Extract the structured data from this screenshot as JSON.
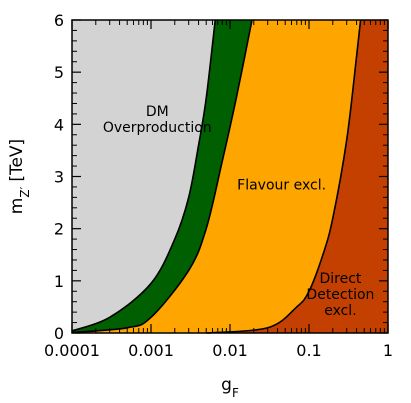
{
  "chart_data": {
    "type": "area",
    "title": "",
    "xlabel": "g",
    "xlabel_sub": "F",
    "ylabel": "m",
    "ylabel_sub": "Z′",
    "ylabel_unit": "[TeV]",
    "x_scale": "log",
    "xlim": [
      0.0001,
      1
    ],
    "ylim": [
      0,
      6
    ],
    "x_ticks": [
      {
        "value": 0.0001,
        "label": "0.0001"
      },
      {
        "value": 0.001,
        "label": "0.001"
      },
      {
        "value": 0.01,
        "label": "0.01"
      },
      {
        "value": 0.1,
        "label": "0.1"
      },
      {
        "value": 1,
        "label": "1"
      }
    ],
    "y_ticks": [
      {
        "value": 0,
        "label": "0"
      },
      {
        "value": 1,
        "label": "1"
      },
      {
        "value": 2,
        "label": "2"
      },
      {
        "value": 3,
        "label": "3"
      },
      {
        "value": 4,
        "label": "4"
      },
      {
        "value": 5,
        "label": "5"
      },
      {
        "value": 6,
        "label": "6"
      }
    ],
    "grid": false,
    "boundaries": [
      {
        "points": [
          [
            0.0001,
            0.04
          ],
          [
            0.0003,
            0.3
          ],
          [
            0.001,
            0.95
          ],
          [
            0.002,
            1.8
          ],
          [
            0.003,
            2.6
          ],
          [
            0.004,
            3.6
          ],
          [
            0.005,
            4.5
          ],
          [
            0.0065,
            6
          ]
        ]
      },
      {
        "points": [
          [
            0.0001,
            0.01
          ],
          [
            0.0005,
            0.1
          ],
          [
            0.001,
            0.3
          ],
          [
            0.003,
            1.2
          ],
          [
            0.005,
            2.0
          ],
          [
            0.008,
            3.3
          ],
          [
            0.012,
            4.5
          ],
          [
            0.019,
            6
          ]
        ]
      },
      {
        "points": [
          [
            0.005,
            0
          ],
          [
            0.03,
            0.1
          ],
          [
            0.07,
            0.5
          ],
          [
            0.1,
            0.8
          ],
          [
            0.15,
            1.5
          ],
          [
            0.2,
            2.2
          ],
          [
            0.3,
            3.7
          ],
          [
            0.4,
            5.3
          ],
          [
            0.45,
            6
          ]
        ]
      }
    ],
    "regions": [
      {
        "color": "#d3d3d3"
      },
      {
        "color": "#005f00"
      },
      {
        "color": "#ffa500"
      },
      {
        "color": "#c44000"
      }
    ],
    "annotations": [
      {
        "lines": [
          "DM",
          "Overproduction"
        ],
        "x": 0.0012,
        "y": 4.1
      },
      {
        "lines": [
          "Flavour excl."
        ],
        "x": 0.045,
        "y": 2.85
      },
      {
        "lines": [
          "Direct",
          "Detection",
          "excl."
        ],
        "x": 0.25,
        "y": 0.75
      }
    ]
  }
}
